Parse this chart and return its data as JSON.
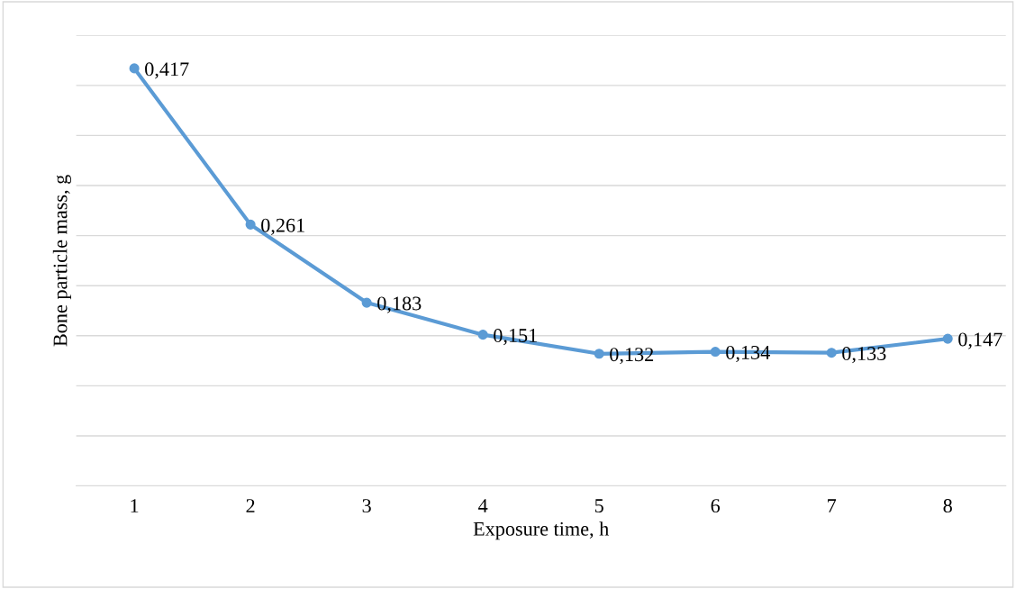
{
  "chart_data": {
    "type": "line",
    "xlabel": "Exposure time, h",
    "ylabel": "Bone particle mass, g",
    "categories": [
      "1",
      "2",
      "3",
      "4",
      "5",
      "6",
      "7",
      "8"
    ],
    "series": [
      {
        "color": "#5b9bd5",
        "values": [
          0.417,
          0.261,
          0.183,
          0.151,
          0.132,
          0.134,
          0.133,
          0.147
        ],
        "value_labels": [
          "0,417",
          "0,261",
          "0,183",
          "0,151",
          "0,132",
          "0,134",
          "0,133",
          "0,147"
        ]
      }
    ],
    "ylim": [
      0,
      0.45
    ],
    "yticks": [
      {
        "value": 0,
        "label": null
      },
      {
        "value": 0.05,
        "label": null
      },
      {
        "value": 0.1,
        "label": null
      },
      {
        "value": 0.15,
        "label": null
      },
      {
        "value": 0.2,
        "label": null
      },
      {
        "value": 0.25,
        "label": null
      },
      {
        "value": 0.3,
        "label": null
      },
      {
        "value": 0.35,
        "label": null
      },
      {
        "value": 0.4,
        "label": null
      },
      {
        "value": 0.45,
        "label": null
      }
    ],
    "grid": "y",
    "tick_labels": "x",
    "marker": "circle",
    "line_style": "solid",
    "legend": false
  }
}
